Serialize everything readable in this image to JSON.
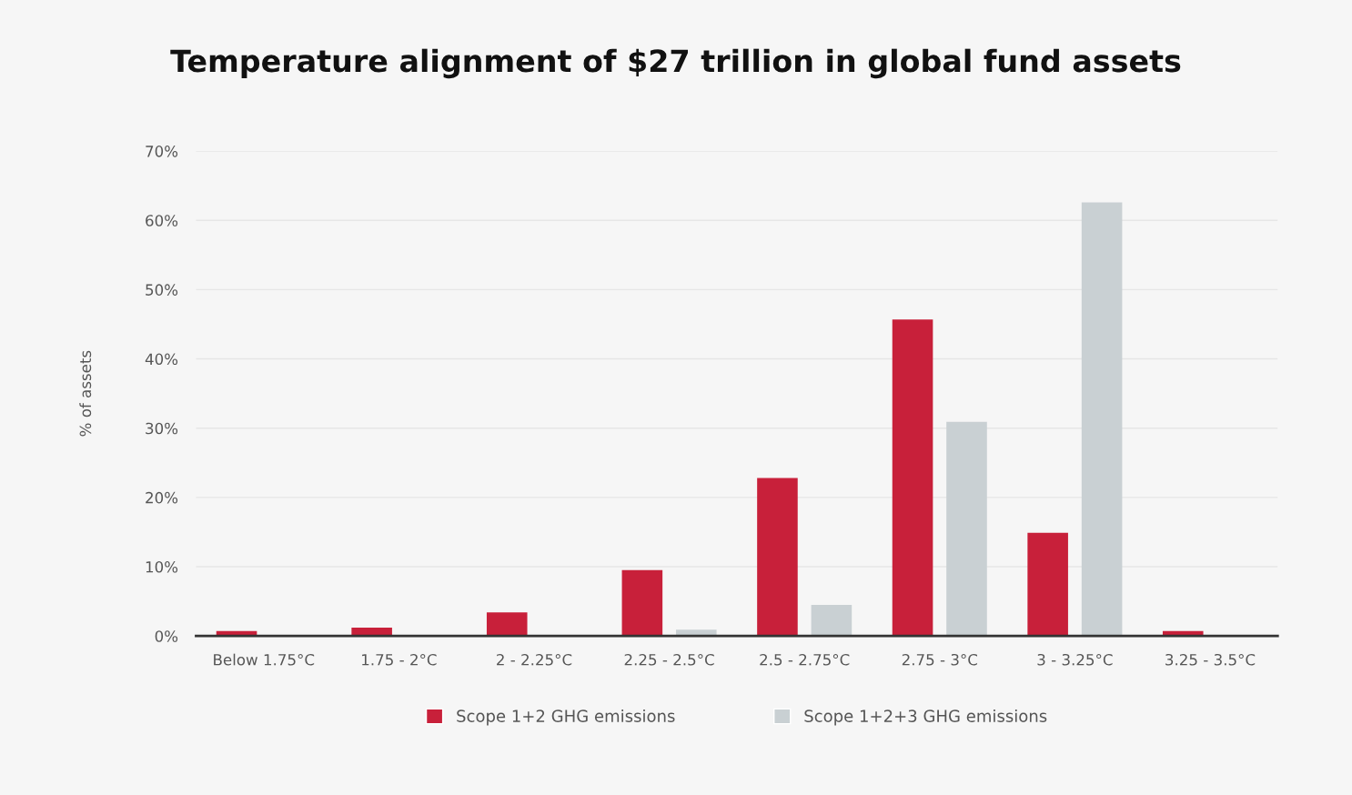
{
  "chart_data": {
    "type": "bar",
    "title": "Temperature alignment of $27 trillion in global fund assets",
    "ylabel": "% of assets",
    "categories": [
      "Below 1.75°C",
      "1.75 - 2°C",
      "2 - 2.25°C",
      "2.25 - 2.5°C",
      "2.5 - 2.75°C",
      "2.75 - 3°C",
      "3 - 3.25°C",
      "3.25 - 3.5°C"
    ],
    "series": [
      {
        "name": "Scope 1+2 GHG emissions",
        "color": "#c8203a",
        "values": [
          0.7,
          1.2,
          3.4,
          9.5,
          22.8,
          45.7,
          14.9,
          0.7
        ]
      },
      {
        "name": "Scope 1+2+3 GHG emissions",
        "color": "#c9d0d3",
        "values": [
          null,
          null,
          null,
          0.9,
          4.5,
          30.9,
          62.6,
          null
        ]
      }
    ],
    "ylim": [
      0,
      70
    ],
    "yticks": [
      {
        "value": 0,
        "label": "0%"
      },
      {
        "value": 10,
        "label": "10%"
      },
      {
        "value": 20,
        "label": "20%"
      },
      {
        "value": 30,
        "label": "30%"
      },
      {
        "value": 40,
        "label": "40%"
      },
      {
        "value": 50,
        "label": "50%"
      },
      {
        "value": 60,
        "label": "60%"
      },
      {
        "value": 70,
        "label": "70%"
      }
    ],
    "grid": "y",
    "legend": "bottom"
  }
}
